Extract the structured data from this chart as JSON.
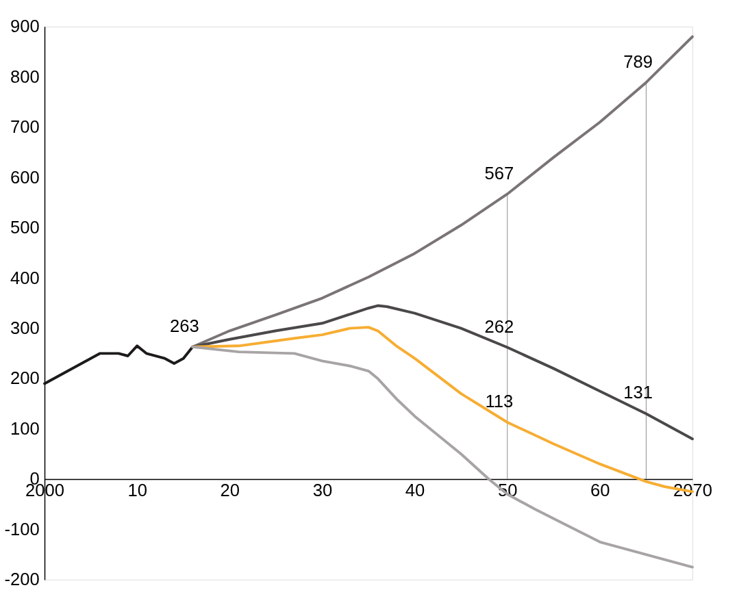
{
  "chart_data": {
    "type": "line",
    "series": [
      {
        "color": "#1c1a1b",
        "x": [
          2000,
          2006,
          2008,
          2009,
          2010,
          2011,
          2013,
          2014,
          2015,
          2016
        ],
        "values": [
          190,
          250,
          250,
          245,
          265,
          250,
          240,
          230,
          240,
          263
        ]
      },
      {
        "color": "#7a7475",
        "x": [
          2016,
          2020,
          2025,
          2030,
          2035,
          2040,
          2045,
          2050,
          2055,
          2060,
          2065,
          2070
        ],
        "values": [
          263,
          295,
          327,
          360,
          402,
          449,
          505,
          567,
          640,
          710,
          789,
          880
        ]
      },
      {
        "color": "#4b4849",
        "x": [
          2016,
          2020,
          2025,
          2030,
          2033,
          2035,
          2036,
          2037,
          2040,
          2045,
          2050,
          2055,
          2060,
          2065,
          2070
        ],
        "values": [
          263,
          278,
          295,
          310,
          328,
          340,
          345,
          343,
          330,
          300,
          262,
          220,
          175,
          130,
          80
        ]
      },
      {
        "color": "#f7ad32",
        "x": [
          2016,
          2021,
          2025,
          2027,
          2030,
          2033,
          2035,
          2036,
          2038,
          2040,
          2045,
          2050,
          2055,
          2060,
          2065,
          2067,
          2070
        ],
        "values": [
          263,
          265,
          275,
          280,
          287,
          300,
          302,
          295,
          265,
          240,
          170,
          113,
          70,
          30,
          -5,
          -15,
          -25
        ]
      },
      {
        "color": "#a8a4a5",
        "x": [
          2016,
          2021,
          2027,
          2030,
          2033,
          2035,
          2036,
          2038,
          2040,
          2045,
          2048,
          2050,
          2053,
          2060,
          2070
        ],
        "values": [
          263,
          253,
          250,
          235,
          225,
          215,
          200,
          160,
          125,
          50,
          0,
          -30,
          -60,
          -125,
          -175
        ]
      }
    ],
    "xlim": [
      2000,
      2070
    ],
    "xticks": [
      {
        "value": 2000,
        "label": "2000"
      },
      {
        "value": 2010,
        "label": "10"
      },
      {
        "value": 2020,
        "label": "20"
      },
      {
        "value": 2030,
        "label": "30"
      },
      {
        "value": 2040,
        "label": "40"
      },
      {
        "value": 2050,
        "label": "50"
      },
      {
        "value": 2060,
        "label": "60"
      },
      {
        "value": 2070,
        "label": "2070"
      }
    ],
    "ylim": [
      -200,
      900
    ],
    "yticks": [
      -200,
      -100,
      0,
      100,
      200,
      300,
      400,
      500,
      600,
      700,
      800,
      900
    ],
    "annotations": [
      {
        "text": "263",
        "x": 2016,
        "y": 263
      },
      {
        "text": "567",
        "x": 2050,
        "y": 567
      },
      {
        "text": "789",
        "x": 2065,
        "y": 789
      },
      {
        "text": "262",
        "x": 2050,
        "y": 262
      },
      {
        "text": "113",
        "x": 2050,
        "y": 113
      },
      {
        "text": "131",
        "x": 2065,
        "y": 131
      }
    ],
    "ref_lines": [
      {
        "axis": "x",
        "value": 2050,
        "color": "#8c8c8c"
      },
      {
        "axis": "x",
        "value": 2065,
        "color": "#8c8c8c"
      }
    ],
    "grid": false,
    "legend": false,
    "marker": "none",
    "line_style": "solid"
  }
}
